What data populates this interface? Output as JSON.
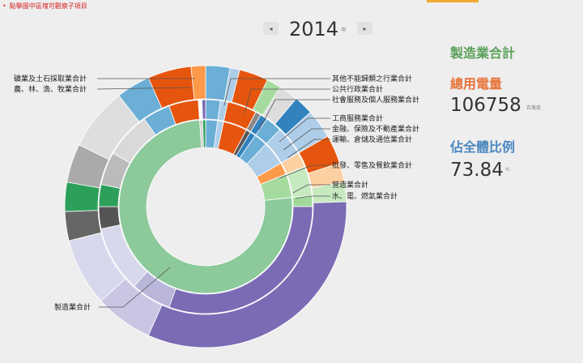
{
  "hint": {
    "bullet": "•",
    "text": "點擊圖中區塊可觀察子項目",
    "color": "#d62728"
  },
  "year_nav": {
    "year": "2014",
    "unit": "年",
    "prev_icon": "◂",
    "next_icon": "▸"
  },
  "stats": {
    "selected_name": "製造業合計",
    "power_label": "總用電量",
    "power_value": "106758",
    "power_unit": "百萬度",
    "share_label": "佔全體比例",
    "share_value": "73.84",
    "share_unit": "%"
  },
  "colors": {
    "manufacturing": "#8cc99b",
    "manufacturing_text": "#5aa05a",
    "power_text": "#e8743b",
    "share_text": "#4a87bf",
    "accent": "#f0a830",
    "purple": "#7b6bb5",
    "lavender": "#d8d8ec",
    "grey": "#cfcfcf",
    "darkgrey": "#555555",
    "green": "#2ca05a",
    "orange": "#e6550d",
    "lightorange": "#fd9a4a",
    "blue": "#6baed6",
    "lightblue": "#aecde8",
    "darkblue": "#3182bd",
    "lightgreen": "#a6dba0"
  },
  "chart_data": {
    "type": "sunburst",
    "title": "",
    "categories": [
      {
        "name": "製造業合計",
        "share": 73.84
      },
      {
        "name": "水、電、燃氣業合計"
      },
      {
        "name": "營造業合計"
      },
      {
        "name": "批發、零售及餐飲業合計"
      },
      {
        "name": "運輸、倉儲及通信業合計"
      },
      {
        "name": "金融、保險及不動產業合計"
      },
      {
        "name": "工商服務業合計"
      },
      {
        "name": "社會服務及個人服務業合計"
      },
      {
        "name": "公共行政業合計"
      },
      {
        "name": "其他不能歸類之行業合計"
      },
      {
        "name": "礦業及土石採取業合計"
      },
      {
        "name": "農、林、漁、牧業合計"
      }
    ]
  }
}
